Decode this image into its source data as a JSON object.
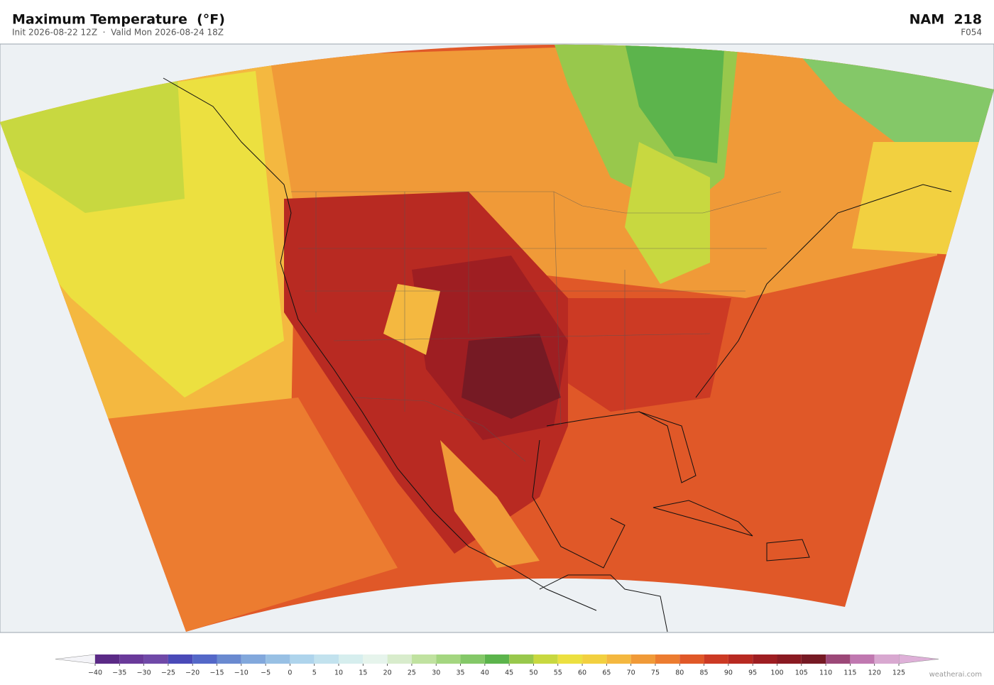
{
  "header": {
    "title": "Maximum Temperature  (°F)",
    "subtitle": "Init 2026-08-22 12Z  ·  Valid Mon 2026-08-24 18Z",
    "model": "NAM  218",
    "forecast_hour": "F054"
  },
  "colorbar": {
    "ticks": [
      {
        "value": -40,
        "label": "−40"
      },
      {
        "value": -35,
        "label": "−35"
      },
      {
        "value": -30,
        "label": "−30"
      },
      {
        "value": -25,
        "label": "−25"
      },
      {
        "value": -20,
        "label": "−20"
      },
      {
        "value": -15,
        "label": "−15"
      },
      {
        "value": -10,
        "label": "−10"
      },
      {
        "value": -5,
        "label": "−5"
      },
      0,
      5,
      10,
      15,
      20,
      25,
      30,
      35,
      40,
      45,
      50,
      55,
      60,
      65,
      70,
      75,
      80,
      85,
      90,
      95,
      100,
      105,
      110,
      115,
      120,
      125
    ],
    "colors": [
      "#5b2a86",
      "#6a3a9a",
      "#7049a8",
      "#4a4ab8",
      "#5468c8",
      "#6a8ad0",
      "#82a8dc",
      "#98c0e4",
      "#aed4ec",
      "#c2e2ee",
      "#d6eeee",
      "#e6f4ec",
      "#d8eccc",
      "#c0e2a0",
      "#a4d680",
      "#84c868",
      "#5cb44c",
      "#98c84c",
      "#c8d840",
      "#ece040",
      "#f2d040",
      "#f4b840",
      "#f09a38",
      "#ec7c30",
      "#e05828",
      "#cc3a24",
      "#b82a22",
      "#9e1e22",
      "#8a1a22",
      "#761a24",
      "#9c4878",
      "#c078b0",
      "#d8a8d0"
    ],
    "under_color": "#f4f4f8",
    "over_color": "#deb0d8"
  },
  "watermark": "weatherai.com"
}
